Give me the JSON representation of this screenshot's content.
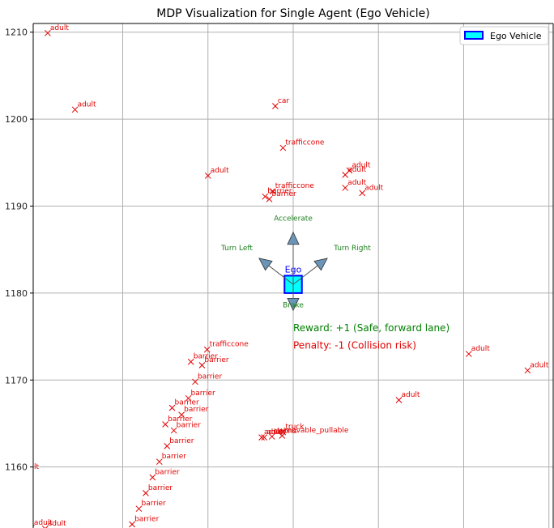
{
  "chart_data": {
    "type": "scatter",
    "title": "MDP Visualization for Single Agent (Ego Vehicle)",
    "xlabel": "",
    "ylabel": "",
    "xlim": [
      -30.5,
      30.5
    ],
    "ylim": [
      1151.4,
      1211.0
    ],
    "y_ticks": [
      1160,
      1170,
      1180,
      1190,
      1200,
      1210
    ],
    "x_grid": [
      -20,
      -10,
      0,
      10,
      20,
      30
    ],
    "grid": true,
    "legend": {
      "position": "top-right",
      "entries": [
        "Ego Vehicle"
      ]
    },
    "ego": {
      "x": 0,
      "y": 1181,
      "label": "Ego"
    },
    "actions": [
      {
        "name": "Accelerate",
        "dx": 0,
        "dy": 6
      },
      {
        "name": "Turn Left",
        "dx": -4,
        "dy": 3
      },
      {
        "name": "Turn Right",
        "dx": 4,
        "dy": 3
      },
      {
        "name": "Brake",
        "dx": 0,
        "dy": -3
      }
    ],
    "annotations": [
      {
        "text": "Reward: +1 (Safe, forward lane)",
        "x": 0,
        "y": 1176,
        "color": "#008000"
      },
      {
        "text": "Penalty: -1 (Collision risk)",
        "x": 0,
        "y": 1174,
        "color": "#e00000"
      }
    ],
    "objects": [
      {
        "label": "adult",
        "x": -28.8,
        "y": 1209.9
      },
      {
        "label": "adult",
        "x": -25.6,
        "y": 1201.1
      },
      {
        "label": "car",
        "x": -2.1,
        "y": 1201.5
      },
      {
        "label": "trafficcone",
        "x": -1.2,
        "y": 1196.7
      },
      {
        "label": "adult",
        "x": -10.0,
        "y": 1193.5
      },
      {
        "label": "adult",
        "x": 6.6,
        "y": 1194.1
      },
      {
        "label": "adult",
        "x": 6.1,
        "y": 1193.6
      },
      {
        "label": "adult",
        "x": 6.1,
        "y": 1192.1
      },
      {
        "label": "adult",
        "x": 8.1,
        "y": 1191.5
      },
      {
        "label": "trafficcone",
        "x": -2.4,
        "y": 1191.7
      },
      {
        "label": "barrier",
        "x": -3.3,
        "y": 1191.1
      },
      {
        "label": "barrier",
        "x": -2.8,
        "y": 1190.8
      },
      {
        "label": "trafficcone",
        "x": -10.1,
        "y": 1173.5
      },
      {
        "label": "barrier",
        "x": -12.0,
        "y": 1172.1
      },
      {
        "label": "barrier",
        "x": -10.7,
        "y": 1171.7
      },
      {
        "label": "barrier",
        "x": -11.5,
        "y": 1169.8
      },
      {
        "label": "barrier",
        "x": -12.3,
        "y": 1167.9
      },
      {
        "label": "barrier",
        "x": -14.2,
        "y": 1166.8
      },
      {
        "label": "barrier",
        "x": -13.1,
        "y": 1166.0
      },
      {
        "label": "barrier",
        "x": -15.0,
        "y": 1164.9
      },
      {
        "label": "barrier",
        "x": -14.0,
        "y": 1164.2
      },
      {
        "label": "barrier",
        "x": -14.8,
        "y": 1162.4
      },
      {
        "label": "barrier",
        "x": -15.7,
        "y": 1160.6
      },
      {
        "label": "barrier",
        "x": -16.5,
        "y": 1158.8
      },
      {
        "label": "barrier",
        "x": -17.3,
        "y": 1157.0
      },
      {
        "label": "barrier",
        "x": -18.1,
        "y": 1155.2
      },
      {
        "label": "barrier",
        "x": -18.9,
        "y": 1153.4
      },
      {
        "label": "truck",
        "x": -1.2,
        "y": 1164.0
      },
      {
        "label": "adult",
        "x": -3.7,
        "y": 1163.4
      },
      {
        "label": "adult",
        "x": -3.4,
        "y": 1163.4
      },
      {
        "label": "debris",
        "x": -2.5,
        "y": 1163.5
      },
      {
        "label": "movable_pullable",
        "x": -1.3,
        "y": 1163.6
      },
      {
        "label": "adult",
        "x": 12.4,
        "y": 1167.7
      },
      {
        "label": "adult",
        "x": 20.6,
        "y": 1173.0
      },
      {
        "label": "adult",
        "x": 27.5,
        "y": 1171.1
      },
      {
        "label": "adult",
        "x": -32.3,
        "y": 1159.4
      },
      {
        "label": "adult",
        "x": -30.7,
        "y": 1153.0
      },
      {
        "label": "adult",
        "x": -29.1,
        "y": 1152.9
      },
      {
        "label": "adult",
        "x": -31.0,
        "y": 1151.6
      }
    ]
  }
}
